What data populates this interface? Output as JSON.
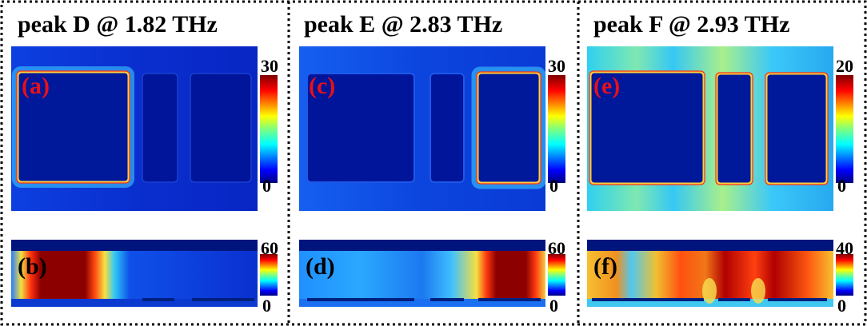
{
  "columns": [
    {
      "title": "peak D @ 1.82 THz",
      "top": {
        "label": "(a)",
        "cbar_max": "30",
        "cbar_min": "0"
      },
      "bottom": {
        "label": "(b)",
        "cbar_max": "60",
        "cbar_min": "0"
      }
    },
    {
      "title": "peak E @ 2.83 THz",
      "top": {
        "label": "(c)",
        "cbar_max": "30",
        "cbar_min": "0"
      },
      "bottom": {
        "label": "(d)",
        "cbar_max": "60",
        "cbar_min": "0"
      }
    },
    {
      "title": "peak F @ 2.93 THz",
      "top": {
        "label": "(e)",
        "cbar_max": "20",
        "cbar_min": "0"
      },
      "bottom": {
        "label": "(f)",
        "cbar_max": "40",
        "cbar_min": "0"
      }
    }
  ],
  "colors": {
    "top_label": "#e8101a",
    "bottom_label": "#000000",
    "field_base": "#00189a",
    "metal_dark": "#000a7d"
  }
}
